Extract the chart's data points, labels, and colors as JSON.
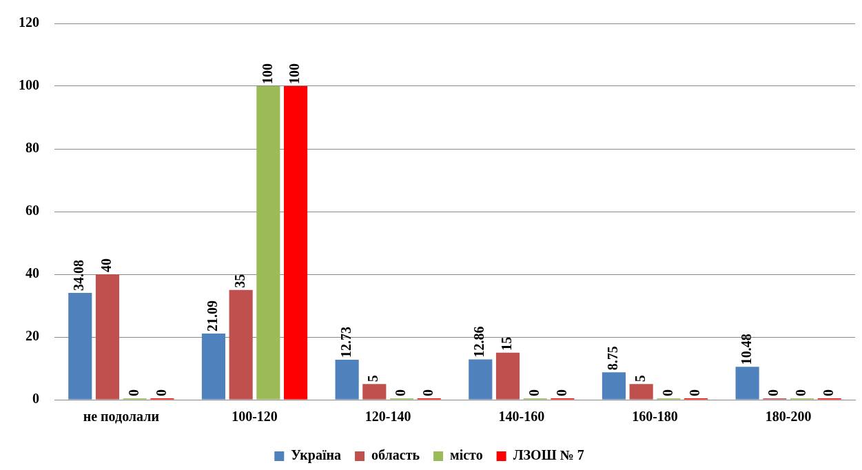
{
  "chart_data": {
    "type": "bar",
    "categories": [
      "не подолали",
      "100-120",
      "120-140",
      "140-160",
      "160-180",
      "180-200"
    ],
    "series": [
      {
        "name": "Україна",
        "color": "#4f81bd",
        "values": [
          34.08,
          21.09,
          12.73,
          12.86,
          8.75,
          10.48
        ]
      },
      {
        "name": "область",
        "color": "#c0504d",
        "values": [
          40,
          35,
          5,
          15,
          5,
          0
        ]
      },
      {
        "name": "місто",
        "color": "#9bbb59",
        "values": [
          0,
          100,
          0,
          0,
          0,
          0
        ]
      },
      {
        "name": "ЛЗОШ № 7",
        "color": "#ff0000",
        "values": [
          0,
          100,
          0,
          0,
          0,
          0
        ]
      }
    ],
    "ylim": [
      0,
      120
    ],
    "yticks": [
      0,
      20,
      40,
      60,
      80,
      100,
      120
    ],
    "grid": "y",
    "legend": "bottom",
    "data_labels": true
  }
}
